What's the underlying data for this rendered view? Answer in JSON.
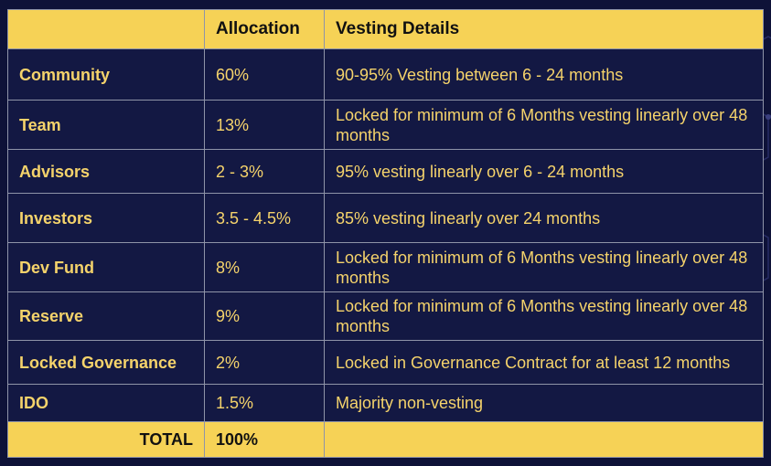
{
  "table": {
    "columns": [
      "",
      "Allocation",
      "Vesting Details"
    ],
    "rows": [
      {
        "label": "Community",
        "allocation": "60%",
        "details": "90-95% Vesting between 6 - 24 months"
      },
      {
        "label": "Team",
        "allocation": "13%",
        "details": "Locked for minimum of 6 Months vesting linearly over 48 months"
      },
      {
        "label": "Advisors",
        "allocation": "2 - 3%",
        "details": "95% vesting linearly over 6 - 24 months"
      },
      {
        "label": "Investors",
        "allocation": "3.5 - 4.5%",
        "details": "85%  vesting linearly over 24 months"
      },
      {
        "label": "Dev Fund",
        "allocation": "8%",
        "details": "Locked for minimum of 6 Months vesting linearly over 48 months"
      },
      {
        "label": "Reserve",
        "allocation": "9%",
        "details": "Locked for minimum of 6 Months vesting linearly over 48 months"
      },
      {
        "label": "Locked Governance",
        "allocation": "2%",
        "details": "Locked in Governance Contract for at least 12 months"
      },
      {
        "label": "IDO",
        "allocation": "1.5%",
        "details": "Majority non-vesting"
      }
    ],
    "total": {
      "label": "TOTAL",
      "allocation": "100%",
      "details": ""
    }
  },
  "colors": {
    "background": "#0e1238",
    "header_fill": "#f6d256",
    "cell_text": "#f5d36b",
    "grid_line": "#8f94a8"
  },
  "chart_data": {
    "type": "table",
    "columns": [
      "",
      "Allocation",
      "Vesting Details"
    ],
    "rows": [
      [
        "Community",
        "60%",
        "90-95% Vesting between 6 - 24 months"
      ],
      [
        "Team",
        "13%",
        "Locked for minimum of 6 Months vesting linearly over 48 months"
      ],
      [
        "Advisors",
        "2 - 3%",
        "95% vesting linearly over 6 - 24 months"
      ],
      [
        "Investors",
        "3.5 - 4.5%",
        "85%  vesting linearly over 24 months"
      ],
      [
        "Dev Fund",
        "8%",
        "Locked for minimum of 6 Months vesting linearly over 48 months"
      ],
      [
        "Reserve",
        "9%",
        "Locked for minimum of 6 Months vesting linearly over 48 months"
      ],
      [
        "Locked Governance",
        "2%",
        "Locked in Governance Contract for at least 12 months"
      ],
      [
        "IDO",
        "1.5%",
        "Majority non-vesting"
      ],
      [
        "TOTAL",
        "100%",
        ""
      ]
    ]
  }
}
